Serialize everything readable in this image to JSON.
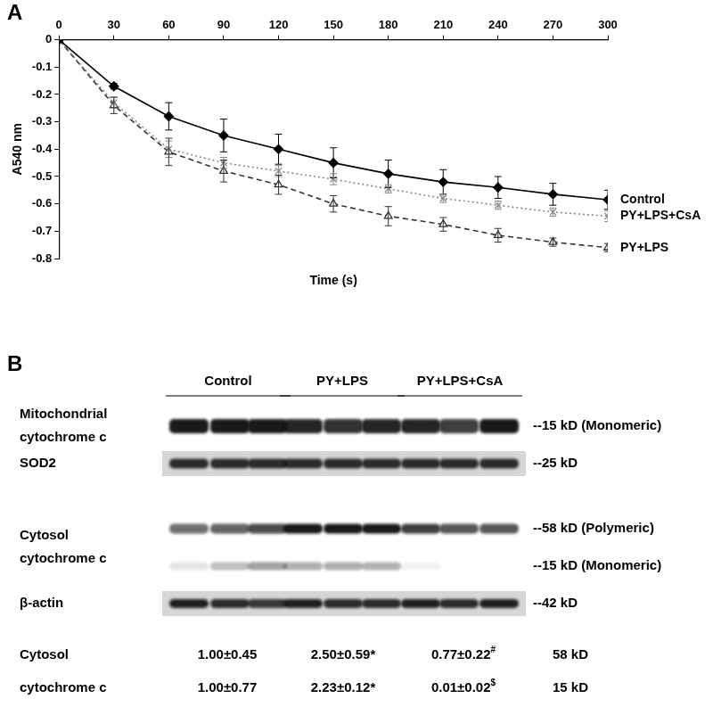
{
  "panel_labels": [
    "A",
    "B"
  ],
  "chart_data": {
    "type": "line",
    "x_label": "Time (s)",
    "y_label": "A540 nm",
    "x": [
      0,
      30,
      60,
      90,
      120,
      150,
      180,
      210,
      240,
      270,
      300
    ],
    "xlim": [
      0,
      300
    ],
    "xticks": [
      0,
      30,
      60,
      90,
      120,
      150,
      180,
      210,
      240,
      270,
      300
    ],
    "ylim": [
      -0.8,
      0
    ],
    "yticks": [
      -0.8,
      -0.7,
      -0.6,
      -0.5,
      -0.4,
      -0.3,
      -0.2,
      -0.1,
      0
    ],
    "grid": false,
    "series": [
      {
        "name": "Control",
        "color": "#000000",
        "marker": "diamond",
        "line_style": "solid",
        "values": [
          0,
          -0.17,
          -0.28,
          -0.35,
          -0.4,
          -0.45,
          -0.49,
          -0.52,
          -0.54,
          -0.565,
          -0.585
        ],
        "errors": [
          0,
          0.01,
          0.05,
          0.06,
          0.055,
          0.055,
          0.05,
          0.045,
          0.04,
          0.04,
          0.035
        ]
      },
      {
        "name": "PY+LPS+CsA",
        "color": "#888888",
        "marker": "x",
        "line_style": "dotted",
        "values": [
          0,
          -0.23,
          -0.4,
          -0.45,
          -0.48,
          -0.51,
          -0.545,
          -0.58,
          -0.605,
          -0.63,
          -0.645
        ],
        "errors": [
          0,
          0.02,
          0.03,
          0.02,
          0.02,
          0.02,
          0.015,
          0.015,
          0.015,
          0.015,
          0.02
        ]
      },
      {
        "name": "PY+LPS",
        "color": "#333333",
        "marker": "triangle",
        "line_style": "dashed",
        "values": [
          0,
          -0.24,
          -0.41,
          -0.48,
          -0.53,
          -0.6,
          -0.645,
          -0.675,
          -0.715,
          -0.74,
          -0.76
        ],
        "errors": [
          0,
          0.03,
          0.05,
          0.04,
          0.035,
          0.03,
          0.035,
          0.025,
          0.025,
          0.015,
          0.015
        ]
      }
    ]
  },
  "blot": {
    "groups": [
      "Control",
      "PY+LPS",
      "PY+LPS+CsA"
    ],
    "rows": [
      {
        "size": "--15 kD (Monomeric)",
        "intensity": [
          0.95,
          0.95,
          0.95,
          0.9,
          0.85,
          0.9,
          0.9,
          0.8,
          0.95
        ]
      },
      {
        "size": "--25 kD",
        "intensity": [
          0.85,
          0.85,
          0.85,
          0.85,
          0.85,
          0.85,
          0.85,
          0.85,
          0.85
        ]
      },
      {
        "size": "--58 kD (Polymeric)",
        "intensity": [
          0.6,
          0.65,
          0.75,
          0.95,
          0.95,
          0.95,
          0.8,
          0.7,
          0.7
        ]
      },
      {
        "size": "--15 kD (Monomeric)",
        "intensity": [
          0.1,
          0.25,
          0.4,
          0.35,
          0.35,
          0.3,
          0.05,
          0,
          0
        ]
      },
      {
        "size": "--42 kD",
        "intensity": [
          0.9,
          0.85,
          0.8,
          0.9,
          0.85,
          0.85,
          0.9,
          0.85,
          0.9
        ]
      }
    ],
    "row_labels": [
      {
        "text": [
          "Mitochondrial",
          "cytochrome c"
        ],
        "rows": [
          0
        ]
      },
      {
        "text": [
          "SOD2"
        ],
        "rows": [
          1
        ]
      },
      {
        "text": [
          "Cytosol",
          "cytochrome c"
        ],
        "rows": [
          2,
          3
        ]
      },
      {
        "text": [
          "β-actin"
        ],
        "rows": [
          4
        ]
      }
    ],
    "quantification": {
      "label": [
        "Cytosol",
        "cytochrome c"
      ],
      "rows": [
        {
          "values": [
            {
              "text": "1.00±0.45"
            },
            {
              "text": "2.50±0.59*"
            },
            {
              "text": "0.77±0.22",
              "sup": "#"
            }
          ],
          "size": "58 kD"
        },
        {
          "values": [
            {
              "text": "1.00±0.77"
            },
            {
              "text": "2.23±0.12*"
            },
            {
              "text": "0.01±0.02",
              "sup": "$"
            }
          ],
          "size": "15 kD"
        }
      ]
    }
  }
}
